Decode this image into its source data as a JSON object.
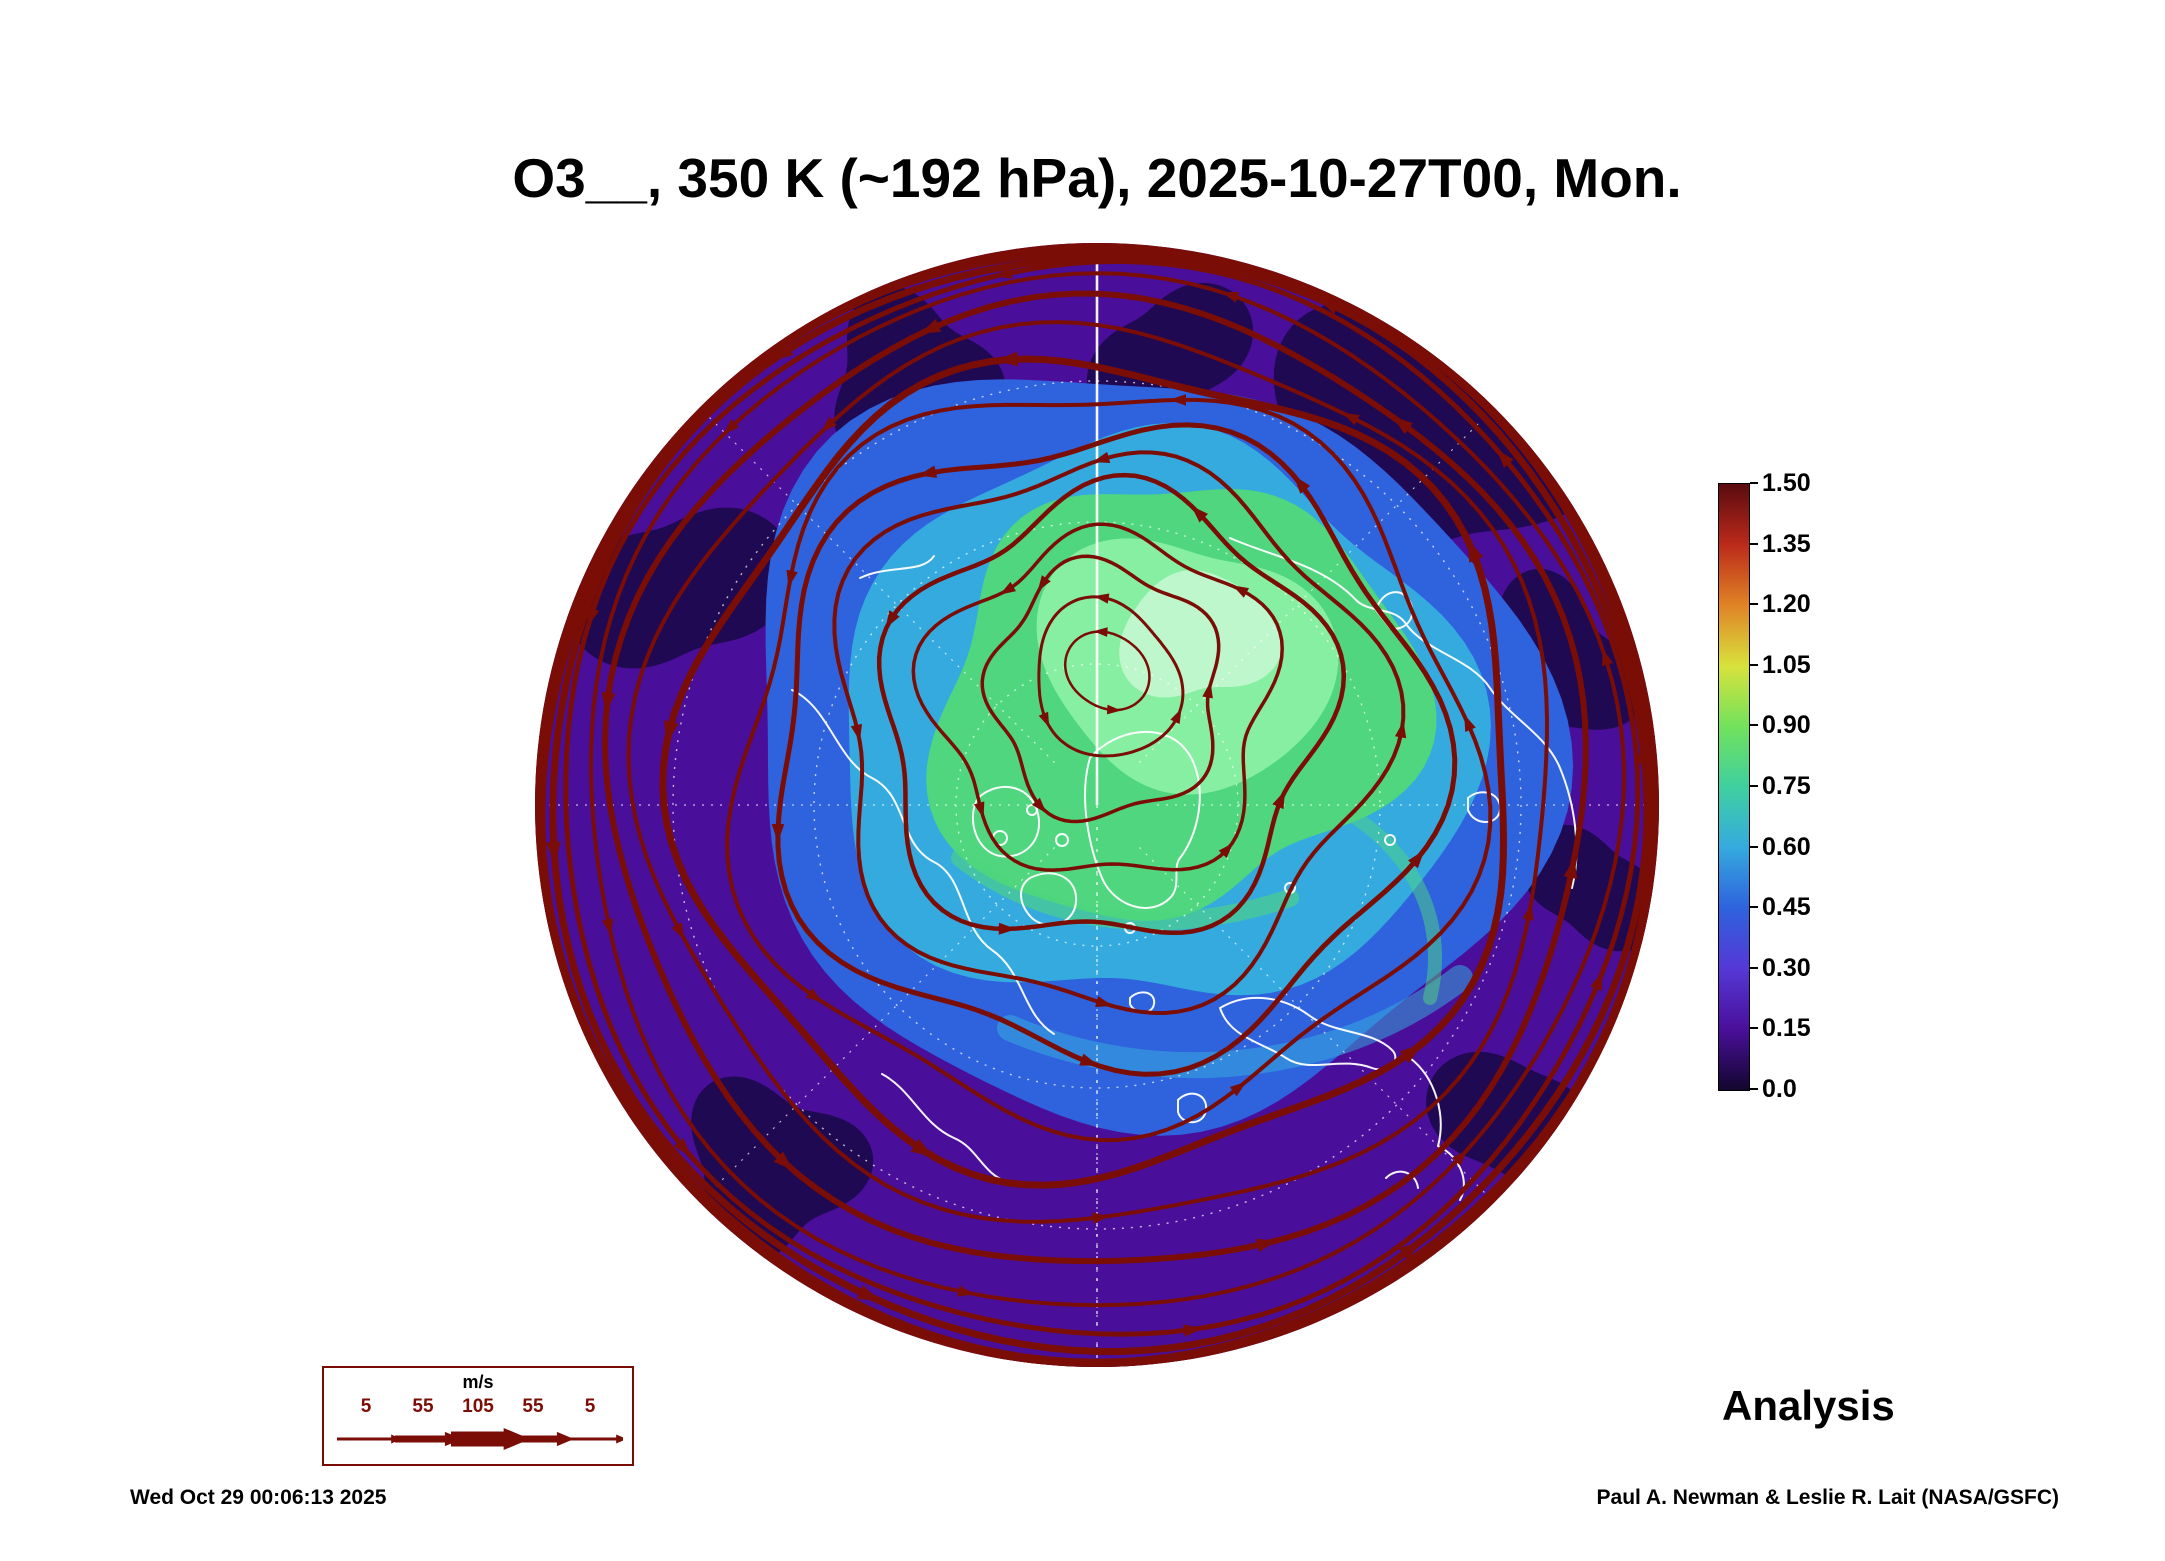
{
  "title": "O3__, 350 K (~192 hPa), 2025-10-27T00, Mon.",
  "colorbar": {
    "tick_labels": [
      "1.50",
      "1.35",
      "1.20",
      "1.05",
      "0.90",
      "0.75",
      "0.60",
      "0.45",
      "0.30",
      "0.15",
      "0.0"
    ]
  },
  "wind_legend": {
    "units_label": "m/s",
    "tick_labels": [
      "5",
      "55",
      "105",
      "55",
      "5"
    ]
  },
  "analysis_label": "Analysis",
  "footer": {
    "generated": "Wed Oct 29 00:06:13 2025",
    "credit": "Paul A. Newman & Leslie R. Lait (NASA/GSFC)"
  },
  "chart_data": {
    "type": "heatmap",
    "title": "O3__, 350 K (~192 hPa), 2025-10-27T00, Mon.",
    "field": "O3 (ozone)",
    "level": "350 K (~192 hPa)",
    "valid_time": "2025-10-27T00 (Mon.)",
    "projection": "north polar stereographic",
    "annotation": "Analysis",
    "colorbar_range": [
      0.0,
      1.5
    ],
    "colorbar_tick_values": [
      0.0,
      0.15,
      0.3,
      0.45,
      0.6,
      0.75,
      0.9,
      1.05,
      1.2,
      1.35,
      1.5
    ],
    "colorbar_colors_low_to_high": [
      "#12062e",
      "#4a0f9a",
      "#5538d6",
      "#2f62dd",
      "#35aadf",
      "#3fd0a0",
      "#72e25c",
      "#d8e23c",
      "#e08326",
      "#bb2a1a",
      "#5a0b10"
    ],
    "overlay": "horizontal wind streamlines with arrowheads, line thickness scaled by wind speed",
    "wind_scale_m_s": [
      5,
      55,
      105,
      55,
      5
    ],
    "legend_position": "right",
    "map_colors": {
      "purple": "#4a0f9a",
      "dark_purple": "#1c0a4e",
      "blue": "#2f62dd",
      "cyan": "#35aadf",
      "green": "#4fd67f",
      "light_green": "#8df2a6",
      "mint": "#c8f8d2",
      "streamline": "#7a0d05",
      "coastline": "#ffffff",
      "graticule": "#ffffff"
    }
  }
}
